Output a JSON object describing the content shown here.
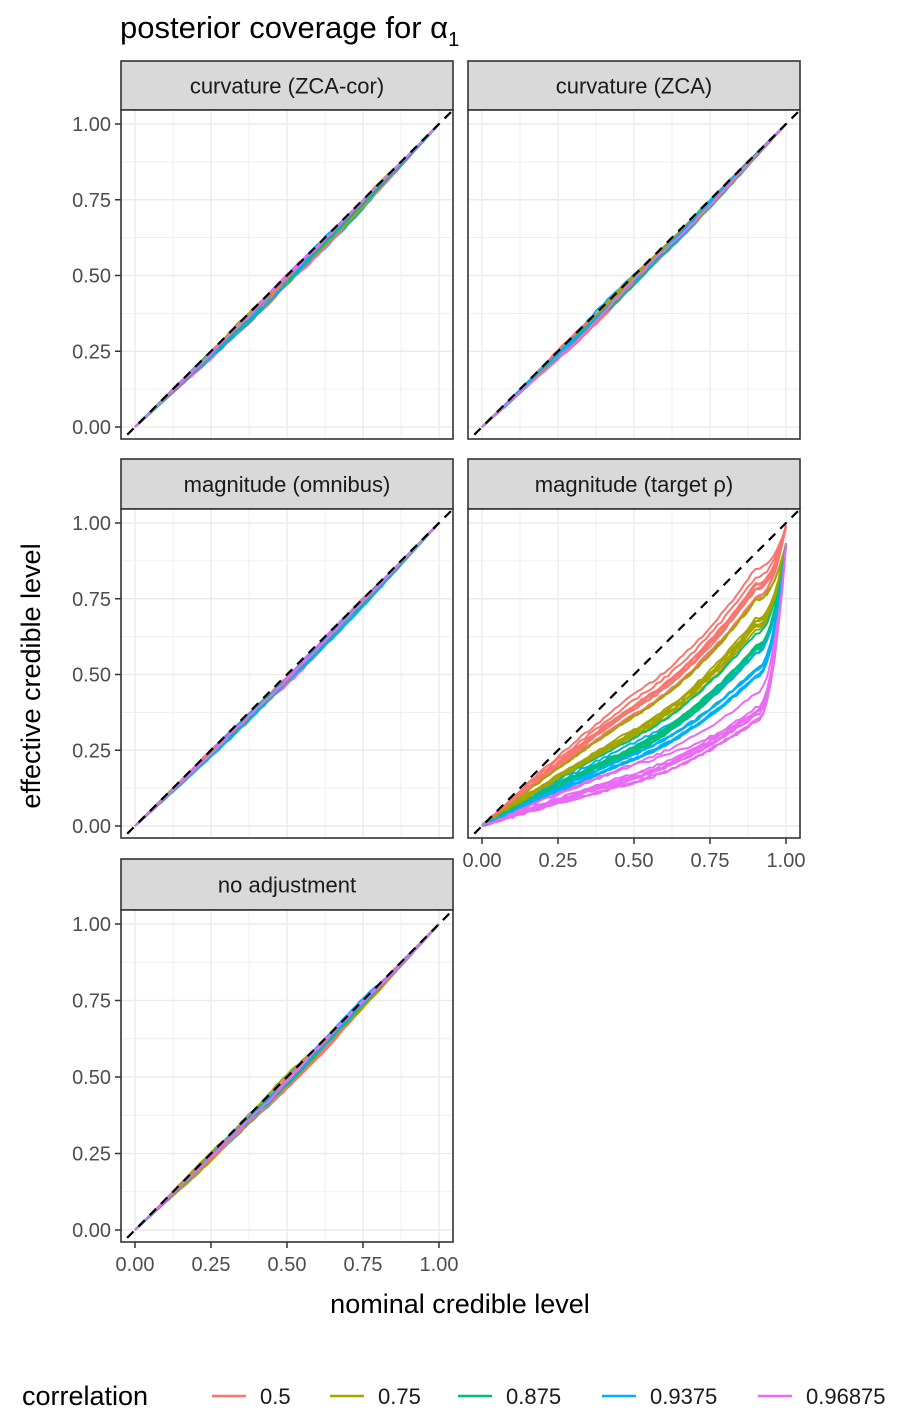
{
  "title": {
    "main": "posterior coverage for α",
    "sub": "1"
  },
  "xlabel": "nominal credible level",
  "ylabel": "effective credible level",
  "ticks": [
    "0.00",
    "0.25",
    "0.50",
    "0.75",
    "1.00"
  ],
  "legend": {
    "title": "correlation",
    "entries": [
      {
        "label": "0.5",
        "color": "#F8766D"
      },
      {
        "label": "0.75",
        "color": "#A3A500"
      },
      {
        "label": "0.875",
        "color": "#00BF7D"
      },
      {
        "label": "0.9375",
        "color": "#00B0F6"
      },
      {
        "label": "0.96875",
        "color": "#E76BF3"
      }
    ]
  },
  "chart_data": {
    "type": "line",
    "title": "posterior coverage for α1",
    "xlabel": "nominal credible level",
    "ylabel": "effective credible level",
    "xlim": [
      0,
      1
    ],
    "ylim": [
      0,
      1
    ],
    "grid": true,
    "legend_position": "bottom",
    "reference_line": {
      "style": "dashed",
      "color": "#000000",
      "slope": 1,
      "intercept": 0
    },
    "panels": [
      {
        "label": "curvature (ZCA-cor)",
        "shape": "diagonal",
        "spread": 0.03
      },
      {
        "label": "curvature (ZCA)",
        "shape": "diagonal",
        "spread": 0.03
      },
      {
        "label": "magnitude (omnibus)",
        "shape": "diagonal",
        "spread": 0.025
      },
      {
        "label": "magnitude (target ρ)",
        "shape": "convex",
        "series_typical_y_at_x_0_5": {
          "0.5": 0.4,
          "0.75": 0.33,
          "0.875": 0.28,
          "0.9375": 0.24,
          "0.96875": 0.18
        },
        "series_typical_y_at_x_0_9": {
          "0.5": 0.8,
          "0.75": 0.7,
          "0.875": 0.62,
          "0.9375": 0.52,
          "0.96875": 0.4
        }
      },
      {
        "label": "no adjustment",
        "shape": "diagonal",
        "spread": 0.03
      }
    ],
    "series": [
      {
        "name": "0.5",
        "color": "#F8766D"
      },
      {
        "name": "0.75",
        "color": "#A3A500"
      },
      {
        "name": "0.875",
        "color": "#00BF7D"
      },
      {
        "name": "0.9375",
        "color": "#00B0F6"
      },
      {
        "name": "0.96875",
        "color": "#E76BF3"
      }
    ]
  }
}
